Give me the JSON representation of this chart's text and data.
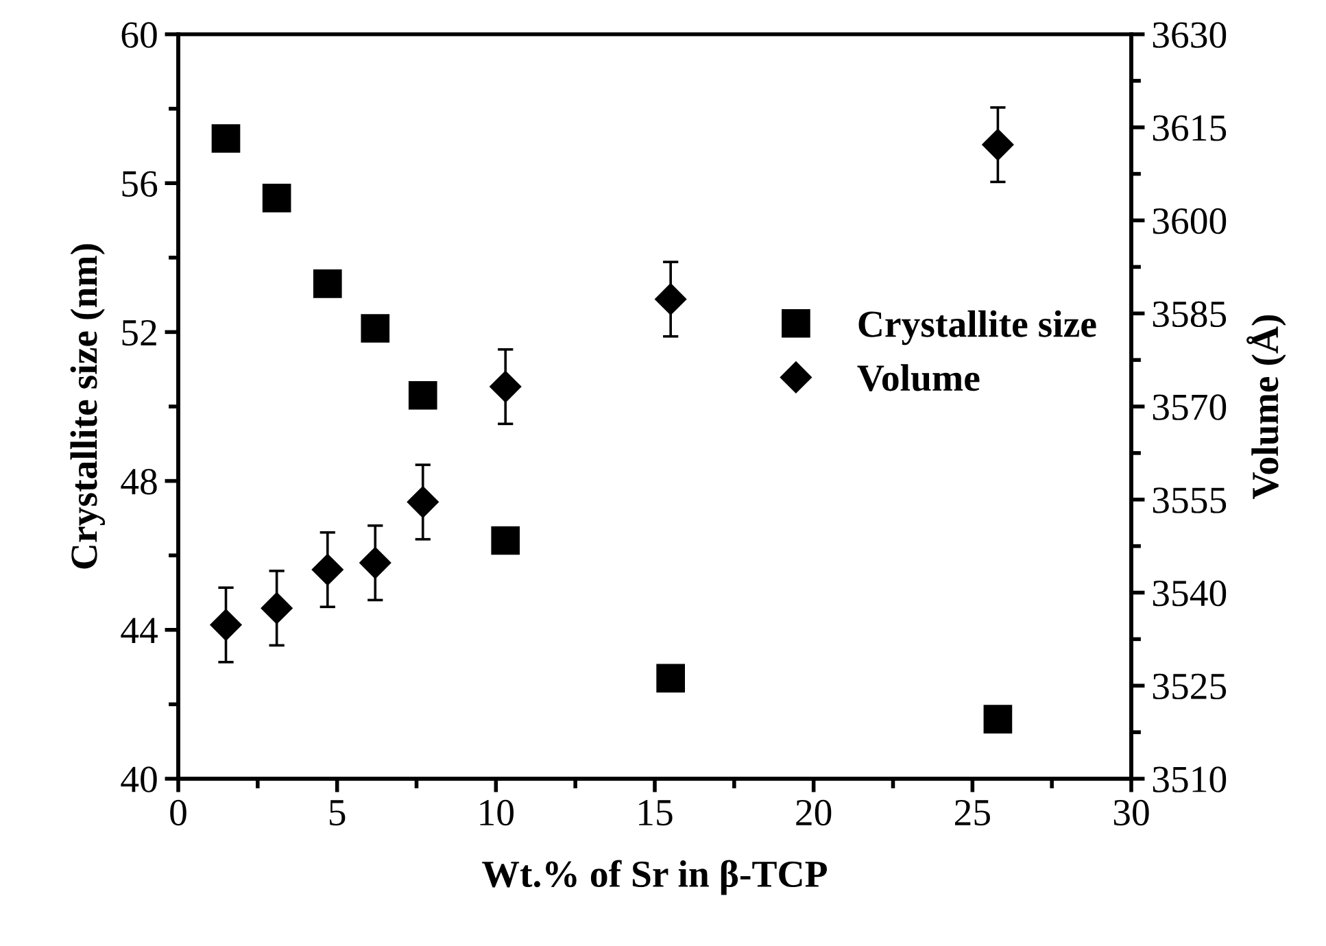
{
  "chart_data": {
    "type": "scatter",
    "xlabel": "Wt.% of Sr in β-TCP",
    "ylabel": "Crystallite size (nm)",
    "y2label": "Volume (Å)",
    "x": [
      1.5,
      3.1,
      4.7,
      6.2,
      7.7,
      10.3,
      15.5,
      25.8
    ],
    "series": [
      {
        "name": "Crystallite size",
        "color": "#000000",
        "marker": "square",
        "values": [
          57.2,
          55.6,
          53.3,
          52.1,
          50.3,
          46.4,
          42.7,
          41.6
        ]
      },
      {
        "name": "Volume",
        "color": "#000000",
        "marker": "diamond",
        "axis": "y2",
        "values": [
          3534.8,
          3537.5,
          3543.7,
          3544.8,
          3554.6,
          3573.2,
          3587.3,
          3612.2
        ],
        "errors": [
          6,
          6,
          6,
          6,
          6,
          6,
          6,
          6
        ]
      }
    ],
    "xlim": [
      0,
      30
    ],
    "xticks": [
      0,
      5,
      10,
      15,
      20,
      25,
      30
    ],
    "ylim": [
      40,
      60
    ],
    "yticks": [
      40,
      44,
      48,
      52,
      56,
      60
    ],
    "y2lim": [
      3510,
      3630
    ],
    "y2ticks": [
      3510,
      3525,
      3540,
      3555,
      3570,
      3585,
      3600,
      3615,
      3630
    ],
    "grid": false,
    "legend": "right"
  }
}
